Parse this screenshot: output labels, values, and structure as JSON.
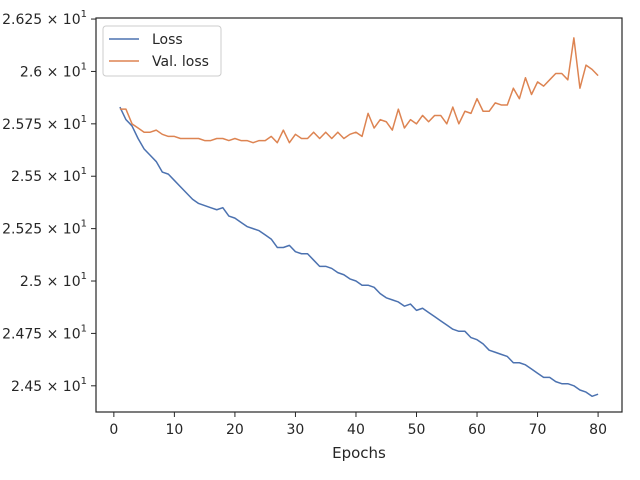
{
  "chart_data": {
    "type": "line",
    "xlabel": "Epochs",
    "ylabel": "",
    "xlim": [
      -2.95,
      83.95
    ],
    "ylim": [
      24.375,
      26.255
    ],
    "x_ticks": [
      0,
      10,
      20,
      30,
      40,
      50,
      60,
      70,
      80
    ],
    "y_ticks": [
      24.5,
      24.75,
      25.0,
      25.25,
      25.5,
      25.75,
      26.0,
      26.25
    ],
    "y_tick_labels": [
      {
        "base": "2.45",
        "exp": "1"
      },
      {
        "base": "2.475",
        "exp": "1"
      },
      {
        "base": "2.5",
        "exp": "1"
      },
      {
        "base": "2.525",
        "exp": "1"
      },
      {
        "base": "2.55",
        "exp": "1"
      },
      {
        "base": "2.575",
        "exp": "1"
      },
      {
        "base": "2.6",
        "exp": "1"
      },
      {
        "base": "2.625",
        "exp": "1"
      }
    ],
    "tick_label_times": "×",
    "tick_label_ten": "10",
    "grid": false,
    "legend_position": "upper-left",
    "colors": {
      "Loss": "#4c72b0",
      "Val. loss": "#dd8452"
    },
    "series": [
      {
        "name": "Loss",
        "x": [
          1,
          2,
          3,
          4,
          5,
          6,
          7,
          8,
          9,
          10,
          11,
          12,
          13,
          14,
          15,
          16,
          17,
          18,
          19,
          20,
          21,
          22,
          23,
          24,
          25,
          26,
          27,
          28,
          29,
          30,
          31,
          32,
          33,
          34,
          35,
          36,
          37,
          38,
          39,
          40,
          41,
          42,
          43,
          44,
          45,
          46,
          47,
          48,
          49,
          50,
          51,
          52,
          53,
          54,
          55,
          56,
          57,
          58,
          59,
          60,
          61,
          62,
          63,
          64,
          65,
          66,
          67,
          68,
          69,
          70,
          71,
          72,
          73,
          74,
          75,
          76,
          77,
          78,
          79,
          80
        ],
        "values": [
          25.83,
          25.77,
          25.74,
          25.68,
          25.63,
          25.6,
          25.57,
          25.52,
          25.51,
          25.48,
          25.45,
          25.42,
          25.39,
          25.37,
          25.36,
          25.35,
          25.34,
          25.35,
          25.31,
          25.3,
          25.28,
          25.26,
          25.25,
          25.24,
          25.22,
          25.2,
          25.16,
          25.16,
          25.17,
          25.14,
          25.13,
          25.13,
          25.1,
          25.07,
          25.07,
          25.06,
          25.04,
          25.03,
          25.01,
          25.0,
          24.98,
          24.98,
          24.97,
          24.94,
          24.92,
          24.91,
          24.9,
          24.88,
          24.89,
          24.86,
          24.87,
          24.85,
          24.83,
          24.81,
          24.79,
          24.77,
          24.76,
          24.76,
          24.73,
          24.72,
          24.7,
          24.67,
          24.66,
          24.65,
          24.64,
          24.61,
          24.61,
          24.6,
          24.58,
          24.56,
          24.54,
          24.54,
          24.52,
          24.51,
          24.51,
          24.5,
          24.48,
          24.47,
          24.45,
          24.46
        ]
      },
      {
        "name": "Val. loss",
        "x": [
          1,
          2,
          3,
          4,
          5,
          6,
          7,
          8,
          9,
          10,
          11,
          12,
          13,
          14,
          15,
          16,
          17,
          18,
          19,
          20,
          21,
          22,
          23,
          24,
          25,
          26,
          27,
          28,
          29,
          30,
          31,
          32,
          33,
          34,
          35,
          36,
          37,
          38,
          39,
          40,
          41,
          42,
          43,
          44,
          45,
          46,
          47,
          48,
          49,
          50,
          51,
          52,
          53,
          54,
          55,
          56,
          57,
          58,
          59,
          60,
          61,
          62,
          63,
          64,
          65,
          66,
          67,
          68,
          69,
          70,
          71,
          72,
          73,
          74,
          75,
          76,
          77,
          78,
          79,
          80
        ],
        "values": [
          25.82,
          25.82,
          25.75,
          25.73,
          25.71,
          25.71,
          25.72,
          25.7,
          25.69,
          25.69,
          25.68,
          25.68,
          25.68,
          25.68,
          25.67,
          25.67,
          25.68,
          25.68,
          25.67,
          25.68,
          25.67,
          25.67,
          25.66,
          25.67,
          25.67,
          25.69,
          25.66,
          25.72,
          25.66,
          25.7,
          25.68,
          25.68,
          25.71,
          25.68,
          25.71,
          25.68,
          25.71,
          25.68,
          25.7,
          25.71,
          25.69,
          25.8,
          25.73,
          25.77,
          25.76,
          25.72,
          25.82,
          25.73,
          25.77,
          25.75,
          25.79,
          25.76,
          25.79,
          25.79,
          25.75,
          25.83,
          25.75,
          25.81,
          25.8,
          25.87,
          25.81,
          25.81,
          25.85,
          25.84,
          25.84,
          25.92,
          25.87,
          25.97,
          25.89,
          25.95,
          25.93,
          25.96,
          25.99,
          25.99,
          25.96,
          26.16,
          25.92,
          26.03,
          26.01,
          25.98
        ]
      }
    ]
  }
}
